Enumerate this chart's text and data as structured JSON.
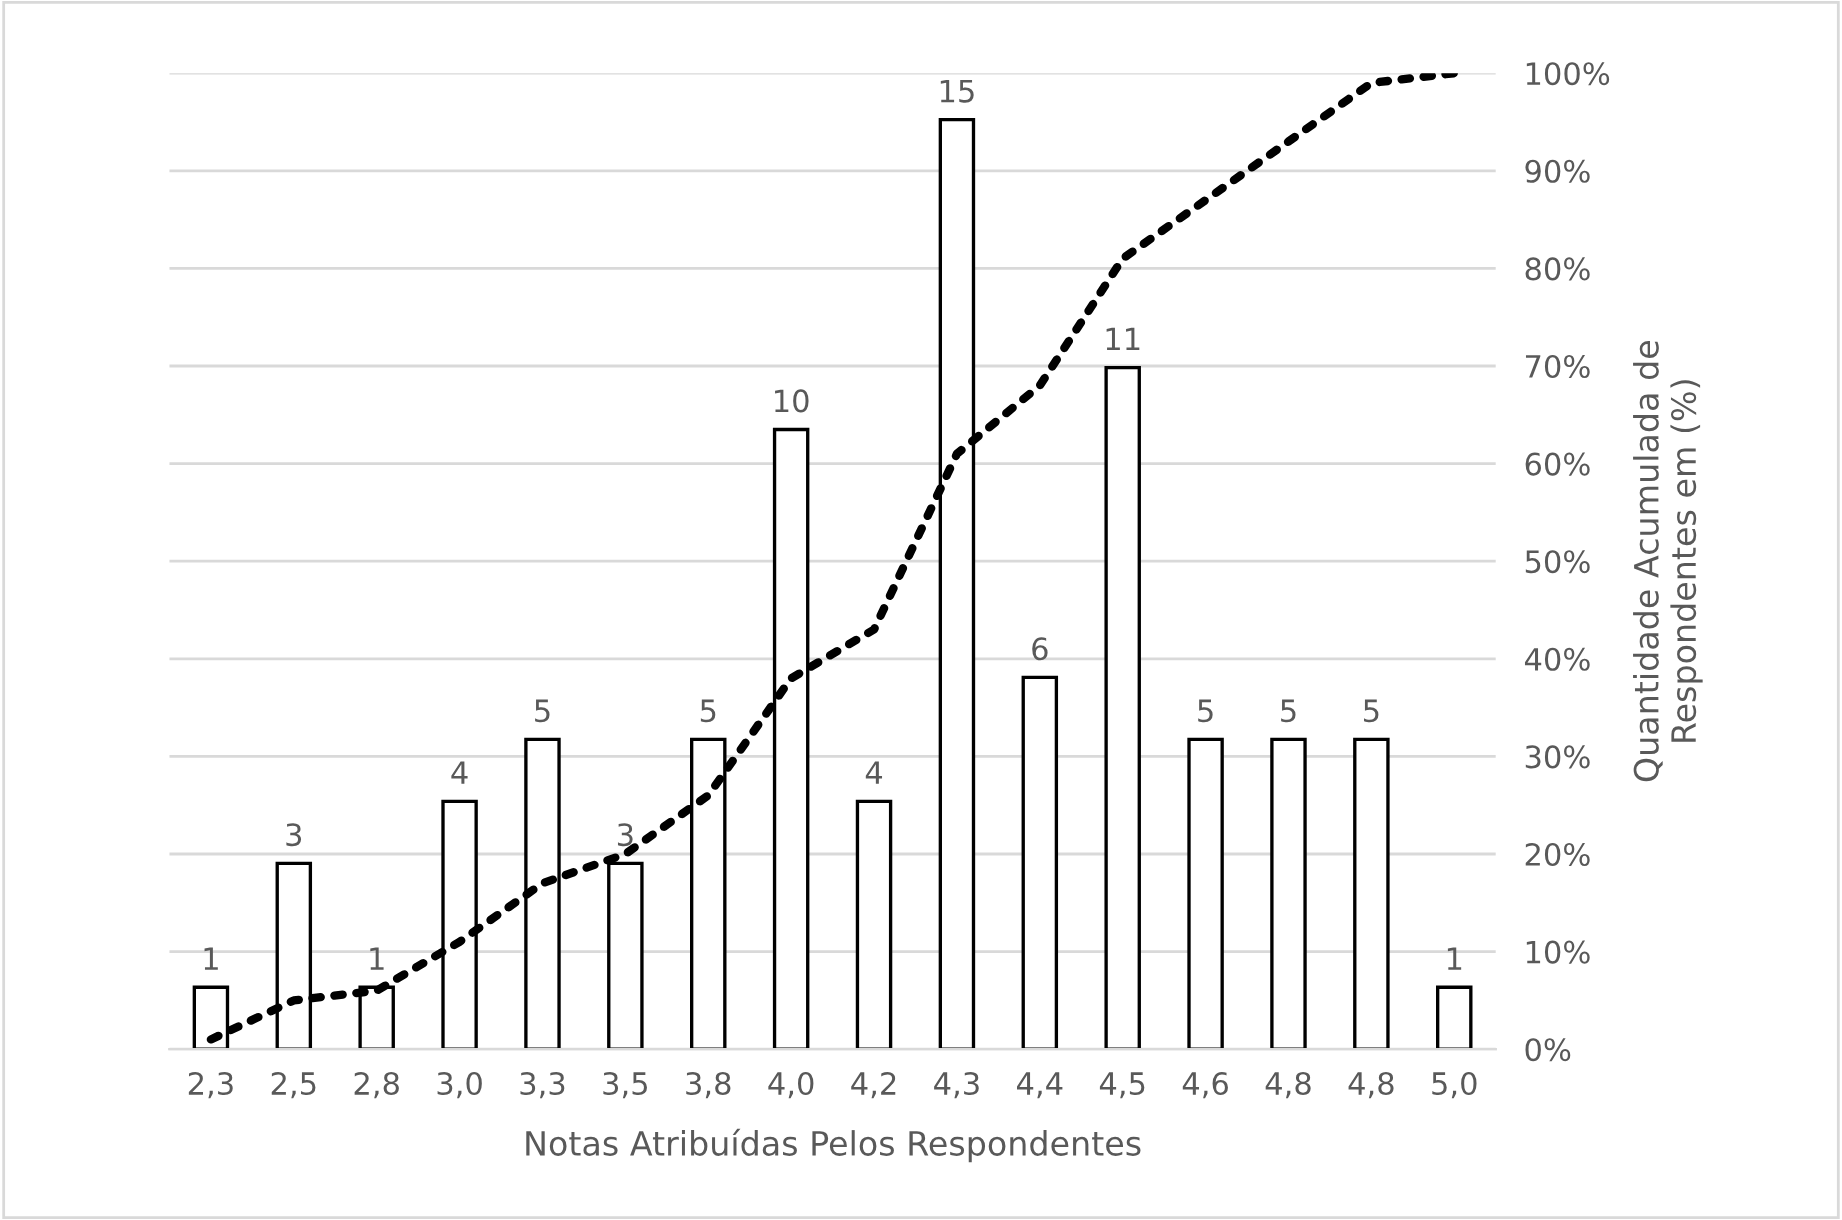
{
  "chart_data": {
    "type": "bar",
    "categories": [
      "2,3",
      "2,5",
      "2,8",
      "3,0",
      "3,3",
      "3,5",
      "3,8",
      "4,0",
      "4,2",
      "4,3",
      "4,4",
      "4,5",
      "4,6",
      "4,8",
      "4,8",
      "5,0"
    ],
    "series": [
      {
        "color": "#ffffff",
        "values": [
          1,
          3,
          1,
          4,
          5,
          3,
          5,
          10,
          4,
          15,
          6,
          11,
          5,
          5,
          5,
          1
        ],
        "value_labels": [
          "1",
          "3",
          "1",
          "4",
          "5",
          "3",
          "5",
          "10",
          "4",
          "15",
          "6",
          "11",
          "5",
          "5",
          "5",
          "1"
        ]
      },
      {
        "type": "line",
        "axis": "y2",
        "color": "#000000",
        "line_style": "dotted",
        "values": [
          1,
          5,
          6,
          11,
          17,
          20,
          26,
          38,
          43,
          61,
          68,
          81,
          87,
          93,
          99,
          100
        ]
      }
    ],
    "xlabel": "Notas Atribuídas Pelos Respondentes",
    "y2label": "Quantidade Acumulada de\nRespondentes em (%)",
    "y2lim": [
      0,
      100
    ],
    "y2ticks": [
      {
        "value": 0,
        "label": "0%"
      },
      {
        "value": 10,
        "label": "10%"
      },
      {
        "value": 20,
        "label": "20%"
      },
      {
        "value": 30,
        "label": "30%"
      },
      {
        "value": 40,
        "label": "40%"
      },
      {
        "value": 50,
        "label": "50%"
      },
      {
        "value": 60,
        "label": "60%"
      },
      {
        "value": 70,
        "label": "70%"
      },
      {
        "value": 80,
        "label": "80%"
      },
      {
        "value": 90,
        "label": "90%"
      },
      {
        "value": 100,
        "label": "100%"
      }
    ],
    "grid": "y",
    "legend": false
  }
}
